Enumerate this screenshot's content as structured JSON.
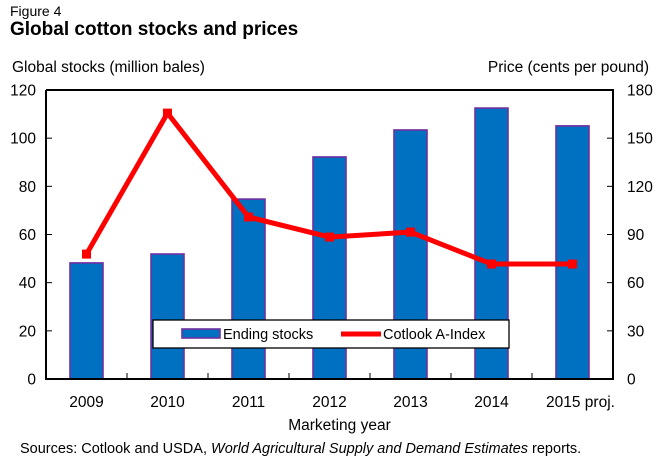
{
  "figure": {
    "label": "Figure 4",
    "title": "Global cotton stocks and prices"
  },
  "chart_data": {
    "type": "bar+line",
    "title": "Global cotton stocks and prices",
    "xlabel": "Marketing year",
    "ylabel_left": "Global stocks (million bales)",
    "ylabel_right": "Price (cents per pound)",
    "categories": [
      "2009",
      "2010",
      "2011",
      "2012",
      "2013",
      "2014",
      "2015 proj."
    ],
    "y_left": {
      "range": [
        0,
        120
      ],
      "ticks": [
        0,
        20,
        40,
        60,
        80,
        100,
        120
      ]
    },
    "y_right": {
      "range": [
        0,
        180
      ],
      "ticks": [
        0,
        30,
        60,
        90,
        120,
        150,
        180
      ]
    },
    "grid": false,
    "legend_position": "bottom-center-inside",
    "series": [
      {
        "name": "Ending stocks",
        "type": "bar",
        "axis": "left",
        "color": "#0070C0",
        "border_color": "#7030A0",
        "values": [
          48.2,
          51.9,
          74.7,
          92.2,
          103.4,
          112.5,
          105.1
        ]
      },
      {
        "name": "Cotlook A-Index",
        "type": "line",
        "axis": "right",
        "color": "#FF0000",
        "values": [
          77.8,
          165.6,
          100.9,
          88.4,
          91.5,
          71.6,
          71.6
        ]
      }
    ]
  },
  "source": {
    "prefix": "Sources: Cotlook and USDA, ",
    "italic": "World Agricultural Supply and Demand Estimates",
    "suffix": " reports."
  }
}
